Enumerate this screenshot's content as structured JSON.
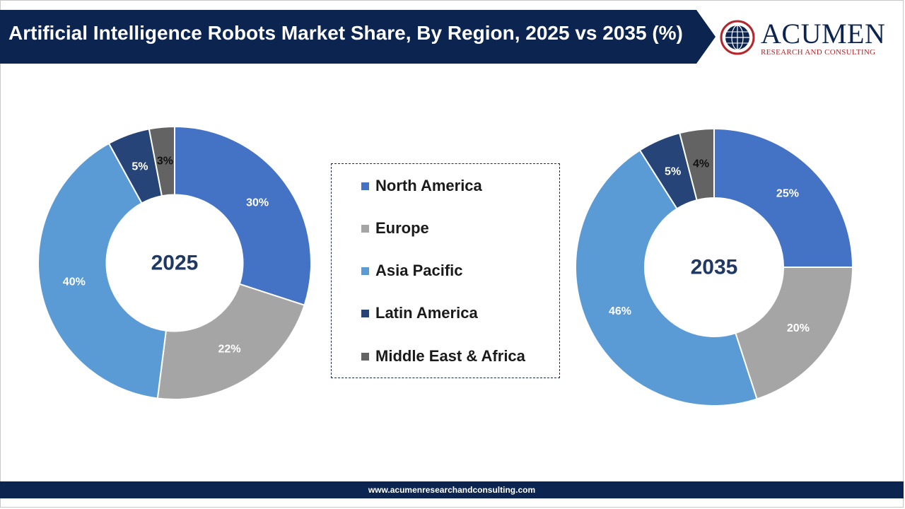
{
  "title": "Artificial Intelligence Robots Market Share, By Region, 2025 vs 2035 (%)",
  "logo": {
    "name": "ACUMEN",
    "subtitle": "RESEARCH AND CONSULTING"
  },
  "footer": {
    "url": "www.acumenresearchandconsulting.com"
  },
  "legend": [
    {
      "label": "North America",
      "color": "#4472c4"
    },
    {
      "label": "Europe",
      "color": "#a5a5a5"
    },
    {
      "label": "Asia Pacific",
      "color": "#5b9bd5"
    },
    {
      "label": "Latin America",
      "color": "#264478"
    },
    {
      "label": "Middle East & Africa",
      "color": "#636363"
    }
  ],
  "chart_data": [
    {
      "type": "donut",
      "center_label": "2025",
      "categories": [
        "North America",
        "Europe",
        "Asia Pacific",
        "Latin America",
        "Middle East & Africa"
      ],
      "values": [
        30,
        22,
        40,
        5,
        3
      ],
      "labels": [
        "30%",
        "22%",
        "40%",
        "5%",
        "3%"
      ],
      "colors": [
        "#4472c4",
        "#a5a5a5",
        "#5b9bd5",
        "#264478",
        "#636363"
      ]
    },
    {
      "type": "donut",
      "center_label": "2035",
      "categories": [
        "North America",
        "Europe",
        "Asia Pacific",
        "Latin America",
        "Middle East & Africa"
      ],
      "values": [
        25,
        20,
        46,
        5,
        4
      ],
      "labels": [
        "25%",
        "20%",
        "46%",
        "5%",
        "4%"
      ],
      "colors": [
        "#4472c4",
        "#a5a5a5",
        "#5b9bd5",
        "#264478",
        "#636363"
      ]
    }
  ]
}
